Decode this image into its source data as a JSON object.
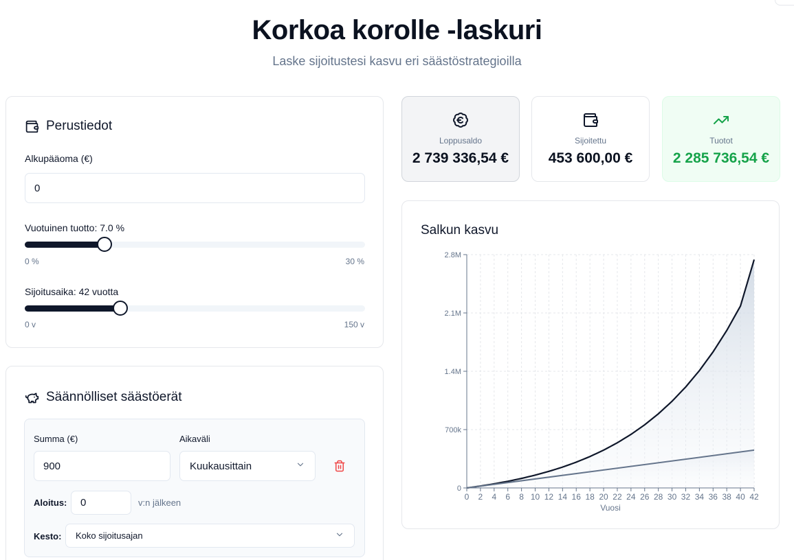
{
  "header": {
    "title": "Korkoa korolle -laskuri",
    "subtitle": "Laske sijoitustesi kasvu eri säästöstrategioilla"
  },
  "basics": {
    "title": "Perustiedot",
    "icon": "wallet-icon",
    "principal_label": "Alkupääoma (€)",
    "principal_value": "0",
    "return_label": "Vuotuinen tuotto: 7.0 %",
    "return_percent": 7.0,
    "return_min_label": "0 %",
    "return_max_label": "30 %",
    "return_min": 0,
    "return_max": 30,
    "period_label": "Sijoitusaika: 42 vuotta",
    "period_years": 42,
    "period_min_label": "0 v",
    "period_max_label": "150 v",
    "period_min": 0,
    "period_max": 150
  },
  "savings": {
    "title": "Säännölliset säästöerät",
    "icon": "piggy-bank-icon",
    "amount_label": "Summa (€)",
    "amount_value": "900",
    "interval_label": "Aikaväli",
    "interval_value": "Kuukausittain",
    "start_label": "Aloitus:",
    "start_value": "0",
    "start_suffix": "v:n jälkeen",
    "duration_label": "Kesto:",
    "duration_value": "Koko sijoitusajan",
    "delete_color": "#ef4444"
  },
  "stats": {
    "total_label": "Loppusaldo",
    "total_value": "2 739 336,54 €",
    "invested_label": "Sijoitettu",
    "invested_value": "453 600,00 €",
    "returns_label": "Tuotot",
    "returns_value": "2 285 736,54 €",
    "returns_color": "#16a34a"
  },
  "chart": {
    "title": "Salkun kasvu"
  },
  "chart_data": {
    "type": "area",
    "title": "Salkun kasvu",
    "xlabel": "Vuosi",
    "ylabel": "",
    "xlim": [
      0,
      42
    ],
    "ylim": [
      0,
      2800000
    ],
    "x_ticks": [
      "0",
      "2",
      "4",
      "6",
      "8",
      "10",
      "12",
      "14",
      "16",
      "18",
      "20",
      "22",
      "24",
      "26",
      "28",
      "30",
      "32",
      "34",
      "36",
      "38",
      "40",
      "42"
    ],
    "y_ticks": [
      "0",
      "700k",
      "1.4M",
      "2.1M",
      "2.8M"
    ],
    "y_tick_values": [
      0,
      700000,
      1400000,
      2100000,
      2800000
    ],
    "grid": true,
    "series": [
      {
        "name": "Loppusaldo",
        "color": "#0f172a",
        "x": [
          0,
          2,
          4,
          6,
          8,
          10,
          12,
          14,
          16,
          18,
          20,
          22,
          24,
          26,
          28,
          30,
          32,
          34,
          36,
          38,
          40,
          42
        ],
        "values": [
          0,
          23100,
          49600,
          79800,
          114200,
          153600,
          198800,
          250200,
          309200,
          376700,
          453600,
          541800,
          642600,
          757800,
          889500,
          1040000,
          1212000,
          1408000,
          1633000,
          1890000,
          2183000,
          2739337
        ]
      },
      {
        "name": "Sijoitettu",
        "color": "#64748b",
        "x": [
          0,
          42
        ],
        "values": [
          0,
          453600
        ]
      }
    ]
  }
}
